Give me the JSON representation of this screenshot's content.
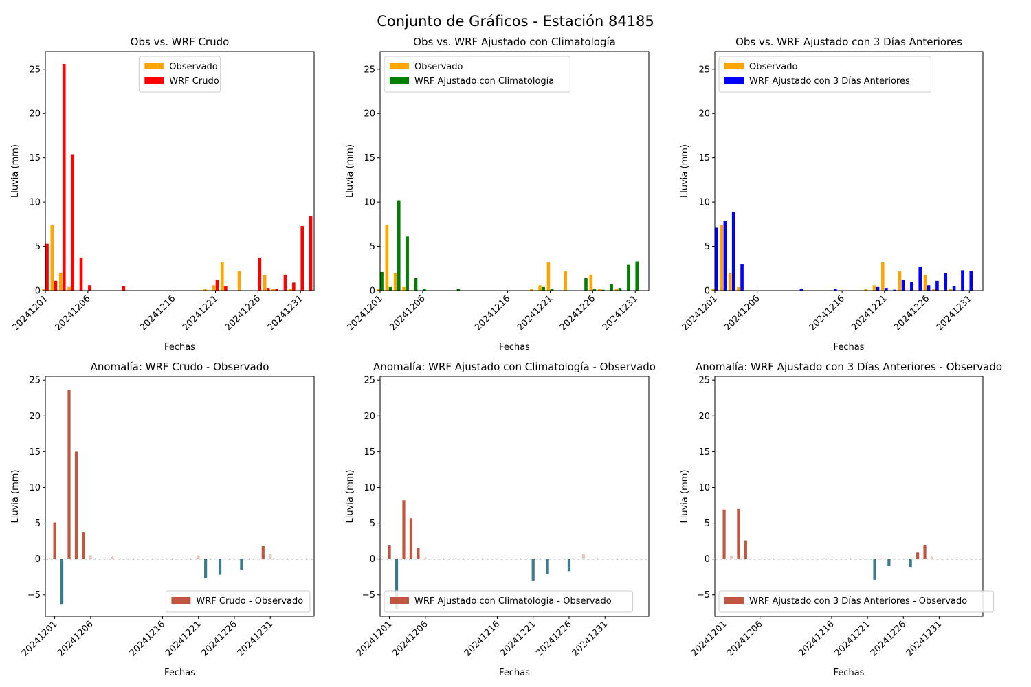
{
  "figure": {
    "suptitle": "Conjunto de Gráficos - Estación 84185"
  },
  "colors": {
    "observado": "#ffa500",
    "wrf_crudo": "#ff0000",
    "wrf_clim": "#008000",
    "wrf_3d": "#0000ff",
    "anom_pos": "#c0563f",
    "anom_neg": "#3c7b8c",
    "anom_light_pos": "#e8c9c2",
    "anom_light_neg": "#e0e0e0"
  },
  "chart_data": [
    {
      "type": "bar",
      "title": "Obs vs. WRF Crudo",
      "xlabel": "Fechas",
      "ylabel": "Lluvia (mm)",
      "ylim": [
        0,
        27
      ],
      "yticks": [
        0,
        5,
        10,
        15,
        20,
        25
      ],
      "xticks": [
        "20241201",
        "20241206",
        "20241216",
        "20241221",
        "20241226",
        "20241231"
      ],
      "legend": "upper-center",
      "series": [
        {
          "name": "Observado",
          "color_key": "observado",
          "points": [
            [
              "20241201",
              0.2
            ],
            [
              "20241202",
              7.4
            ],
            [
              "20241203",
              2.0
            ],
            [
              "20241204",
              0.4
            ],
            [
              "20241220",
              0.2
            ],
            [
              "20241221",
              0.6
            ],
            [
              "20241222",
              3.2
            ],
            [
              "20241224",
              2.2
            ],
            [
              "20241227",
              1.8
            ],
            [
              "20241228",
              0.2
            ],
            [
              "20241230",
              0.2
            ]
          ]
        },
        {
          "name": "WRF Crudo",
          "color_key": "wrf_crudo",
          "points": [
            [
              "20241201",
              5.3
            ],
            [
              "20241202",
              1.1
            ],
            [
              "20241203",
              25.6
            ],
            [
              "20241204",
              15.4
            ],
            [
              "20241205",
              3.7
            ],
            [
              "20241206",
              0.6
            ],
            [
              "20241210",
              0.5
            ],
            [
              "20241221",
              1.2
            ],
            [
              "20241222",
              0.5
            ],
            [
              "20241226",
              3.7
            ],
            [
              "20241227",
              0.3
            ],
            [
              "20241228",
              0.2
            ],
            [
              "20241229",
              1.8
            ],
            [
              "20241230",
              0.9
            ],
            [
              "20241231",
              7.3
            ],
            [
              "20241232",
              8.4
            ]
          ]
        }
      ]
    },
    {
      "type": "bar",
      "title": "Obs vs. WRF Ajustado con Climatología",
      "xlabel": "Fechas",
      "ylabel": "Lluvia (mm)",
      "ylim": [
        0,
        27
      ],
      "yticks": [
        0,
        5,
        10,
        15,
        20,
        25
      ],
      "xticks": [
        "20241201",
        "20241206",
        "20241216",
        "20241221",
        "20241226",
        "20241231"
      ],
      "legend": "upper-left",
      "series": [
        {
          "name": "Observado",
          "color_key": "observado",
          "points": [
            [
              "20241201",
              0.2
            ],
            [
              "20241202",
              7.4
            ],
            [
              "20241203",
              2.0
            ],
            [
              "20241204",
              0.4
            ],
            [
              "20241219",
              0.2
            ],
            [
              "20241220",
              0.6
            ],
            [
              "20241221",
              3.2
            ],
            [
              "20241223",
              2.2
            ],
            [
              "20241226",
              1.8
            ],
            [
              "20241227",
              0.2
            ],
            [
              "20241229",
              0.2
            ]
          ]
        },
        {
          "name": "WRF Ajustado con Climatología",
          "color_key": "wrf_clim",
          "points": [
            [
              "20241201",
              2.1
            ],
            [
              "20241202",
              0.4
            ],
            [
              "20241203",
              10.2
            ],
            [
              "20241204",
              6.1
            ],
            [
              "20241205",
              1.4
            ],
            [
              "20241206",
              0.2
            ],
            [
              "20241210",
              0.2
            ],
            [
              "20241220",
              0.4
            ],
            [
              "20241221",
              0.2
            ],
            [
              "20241225",
              1.4
            ],
            [
              "20241226",
              0.2
            ],
            [
              "20241227",
              0.1
            ],
            [
              "20241228",
              0.7
            ],
            [
              "20241229",
              0.3
            ],
            [
              "20241230",
              2.9
            ],
            [
              "20241231",
              3.3
            ]
          ]
        }
      ]
    },
    {
      "type": "bar",
      "title": "Obs vs. WRF Ajustado con 3 Días Anteriores",
      "xlabel": "Fechas",
      "ylabel": "Lluvia (mm)",
      "ylim": [
        0,
        27
      ],
      "yticks": [
        0,
        5,
        10,
        15,
        20,
        25
      ],
      "xticks": [
        "20241201",
        "20241206",
        "20241216",
        "20241221",
        "20241226",
        "20241231"
      ],
      "legend": "upper-left",
      "series": [
        {
          "name": "Observado",
          "color_key": "observado",
          "points": [
            [
              "20241201",
              0.2
            ],
            [
              "20241202",
              7.4
            ],
            [
              "20241203",
              2.0
            ],
            [
              "20241204",
              0.4
            ],
            [
              "20241219",
              0.2
            ],
            [
              "20241220",
              0.6
            ],
            [
              "20241221",
              3.2
            ],
            [
              "20241223",
              2.2
            ],
            [
              "20241226",
              1.8
            ],
            [
              "20241227",
              0.2
            ],
            [
              "20241229",
              0.2
            ]
          ]
        },
        {
          "name": "WRF Ajustado con 3 Días Anteriores",
          "color_key": "wrf_3d",
          "points": [
            [
              "20241201",
              7.1
            ],
            [
              "20241202",
              7.9
            ],
            [
              "20241203",
              8.9
            ],
            [
              "20241204",
              3.0
            ],
            [
              "20241211",
              0.2
            ],
            [
              "20241215",
              0.2
            ],
            [
              "20241220",
              0.4
            ],
            [
              "20241221",
              0.3
            ],
            [
              "20241222",
              0.1
            ],
            [
              "20241223",
              1.2
            ],
            [
              "20241224",
              1.0
            ],
            [
              "20241225",
              2.7
            ],
            [
              "20241226",
              0.6
            ],
            [
              "20241227",
              1.1
            ],
            [
              "20241228",
              2.0
            ],
            [
              "20241229",
              0.5
            ],
            [
              "20241230",
              2.3
            ],
            [
              "20241231",
              2.2
            ]
          ]
        }
      ]
    },
    {
      "type": "bar",
      "title": "Anomalía: WRF Crudo - Observado",
      "xlabel": "Fechas",
      "ylabel": "Lluvia (mm)",
      "ylim": [
        -8,
        25.5
      ],
      "yticks": [
        -5,
        0,
        5,
        10,
        15,
        20,
        25
      ],
      "xticks": [
        "20241201",
        "20241206",
        "20241216",
        "20241221",
        "20241226",
        "20241231"
      ],
      "legend": "lower-right",
      "zero_line": true,
      "series": [
        {
          "name": "WRF Crudo - Observado",
          "color_key": "anom_pos",
          "points": [
            [
              "20241201",
              5.1
            ],
            [
              "20241202",
              -6.3
            ],
            [
              "20241203",
              23.6
            ],
            [
              "20241204",
              15.0
            ],
            [
              "20241205",
              3.7
            ],
            [
              "20241206",
              0.5
            ],
            [
              "20241209",
              0.4
            ],
            [
              "20241220",
              -0.1
            ],
            [
              "20241221",
              0.5
            ],
            [
              "20241222",
              -2.7
            ],
            [
              "20241224",
              -2.2
            ],
            [
              "20241227",
              -1.5
            ],
            [
              "20241230",
              1.8
            ],
            [
              "20241231",
              0.7
            ]
          ]
        }
      ]
    },
    {
      "type": "bar",
      "title": "Anomalía: WRF Ajustado con Climatología - Observado",
      "xlabel": "Fechas",
      "ylabel": "Lluvia (mm)",
      "ylim": [
        -8,
        25.5
      ],
      "yticks": [
        -5,
        0,
        5,
        10,
        15,
        20,
        25
      ],
      "xticks": [
        "20241201",
        "20241206",
        "20241216",
        "20241221",
        "20241226",
        "20241231"
      ],
      "legend": "lower-left",
      "zero_line": true,
      "series": [
        {
          "name": "WRF Ajustado con Climatologia - Observado",
          "color_key": "anom_pos",
          "points": [
            [
              "20241201",
              1.9
            ],
            [
              "20241202",
              -7.0
            ],
            [
              "20241203",
              8.2
            ],
            [
              "20241204",
              5.7
            ],
            [
              "20241205",
              1.5
            ],
            [
              "20241206",
              0.2
            ],
            [
              "20241210",
              0.1
            ],
            [
              "20241220",
              -0.1
            ],
            [
              "20241221",
              -3.0
            ],
            [
              "20241223",
              -2.1
            ],
            [
              "20241226",
              -1.7
            ],
            [
              "20241228",
              0.7
            ],
            [
              "20241230",
              0.1
            ]
          ]
        }
      ]
    },
    {
      "type": "bar",
      "title": "Anomalía: WRF Ajustado con 3 Días Anteriores - Observado",
      "xlabel": "Fechas",
      "ylabel": "Lluvia (mm)",
      "ylim": [
        -8,
        25.5
      ],
      "yticks": [
        -5,
        0,
        5,
        10,
        15,
        20,
        25
      ],
      "xticks": [
        "20241201",
        "20241206",
        "20241216",
        "20241221",
        "20241226",
        "20241231"
      ],
      "legend": "lower-left",
      "zero_line": true,
      "series": [
        {
          "name": "WRF Ajustado con 3 Días Anteriores - Observado",
          "color_key": "anom_pos",
          "points": [
            [
              "20241201",
              6.9
            ],
            [
              "20241202",
              0.4
            ],
            [
              "20241203",
              7.0
            ],
            [
              "20241204",
              2.6
            ],
            [
              "20241211",
              0.1
            ],
            [
              "20241215",
              0.1
            ],
            [
              "20241220",
              -0.1
            ],
            [
              "20241221",
              -0.1
            ],
            [
              "20241222",
              -2.9
            ],
            [
              "20241223",
              0.1
            ],
            [
              "20241224",
              -1.0
            ],
            [
              "20241227",
              -1.2
            ],
            [
              "20241228",
              0.9
            ],
            [
              "20241229",
              1.9
            ],
            [
              "20241230",
              0.3
            ]
          ]
        }
      ]
    }
  ]
}
